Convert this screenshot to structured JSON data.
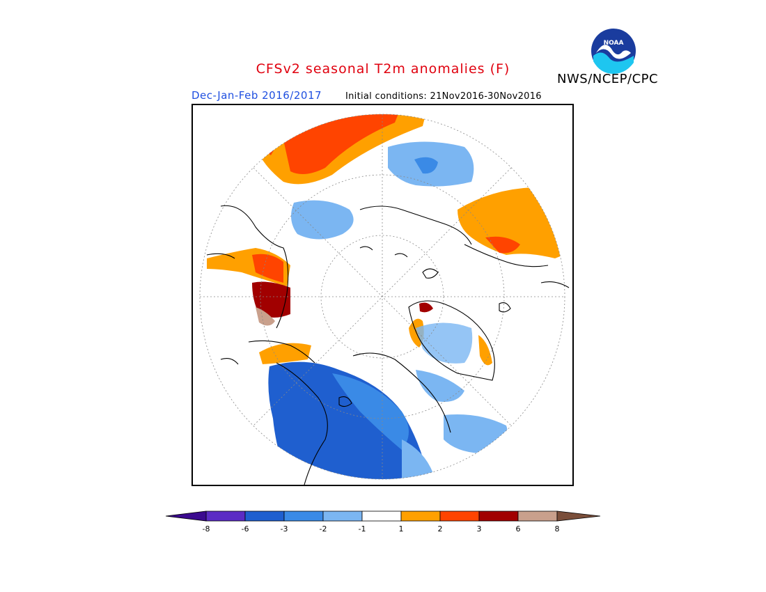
{
  "header": {
    "title": "CFSv2 seasonal T2m anomalies (F)",
    "period": "Dec-Jan-Feb 2016/2017",
    "initial_conditions": "Initial conditions: 21Nov2016-30Nov2016",
    "agency": "NWS/NCEP/CPC",
    "logo_text": "NOAA"
  },
  "colors": {
    "title": "#e0000e",
    "period": "#1f4fe0"
  },
  "legend": {
    "bins": [
      {
        "color": "#5b2cc4",
        "range": "-8 to -6"
      },
      {
        "color": "#1f5fcf",
        "range": "-6 to -3"
      },
      {
        "color": "#3a8ae6",
        "range": "-3 to -2"
      },
      {
        "color": "#7bb6f2",
        "range": "-2 to -1"
      },
      {
        "color": "#ffffff",
        "range": "-1 to 1"
      },
      {
        "color": "#ffa000",
        "range": "1 to 2"
      },
      {
        "color": "#ff4400",
        "range": "2 to 3"
      },
      {
        "color": "#a10000",
        "range": "3 to 6"
      },
      {
        "color": "#c9a08c",
        "range": "6 to 8"
      }
    ],
    "low_end_color": "#3b0a8f",
    "high_end_color": "#7a4e3a",
    "tick_labels": [
      "-8",
      "-6",
      "-3",
      "-2",
      "-1",
      "1",
      "2",
      "3",
      "6",
      "8"
    ]
  }
}
